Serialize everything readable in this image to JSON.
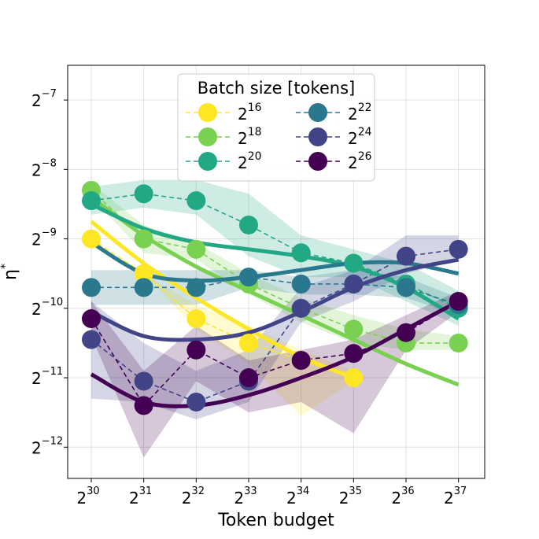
{
  "chart_data": {
    "type": "line",
    "xlabel": "Token budget",
    "ylabel": "η*",
    "x_ticks": [
      {
        "base": "2",
        "exp": "30",
        "value": 30
      },
      {
        "base": "2",
        "exp": "31",
        "value": 31
      },
      {
        "base": "2",
        "exp": "32",
        "value": 32
      },
      {
        "base": "2",
        "exp": "33",
        "value": 33
      },
      {
        "base": "2",
        "exp": "34",
        "value": 34
      },
      {
        "base": "2",
        "exp": "35",
        "value": 35
      },
      {
        "base": "2",
        "exp": "36",
        "value": 36
      },
      {
        "base": "2",
        "exp": "37",
        "value": 37
      }
    ],
    "y_ticks": [
      {
        "base": "2",
        "exp": "−7",
        "value": -7
      },
      {
        "base": "2",
        "exp": "−8",
        "value": -8
      },
      {
        "base": "2",
        "exp": "−9",
        "value": -9
      },
      {
        "base": "2",
        "exp": "−10",
        "value": -10
      },
      {
        "base": "2",
        "exp": "−11",
        "value": -11
      },
      {
        "base": "2",
        "exp": "−12",
        "value": -12
      }
    ],
    "xlim": [
      29.55,
      37.5
    ],
    "ylim": [
      -12.45,
      -6.5
    ],
    "grid": true,
    "legend": {
      "title": "Batch size [tokens]",
      "position": "top-center",
      "columns": 2
    },
    "series": [
      {
        "name": "2^16",
        "base": "2",
        "exp": "16",
        "color": "#fde725",
        "x": [
          30,
          31,
          32,
          33,
          34,
          35
        ],
        "y": [
          -9.0,
          -9.5,
          -10.15,
          -10.5,
          -10.75,
          -11.0
        ],
        "band_upper": [
          -9.0,
          -9.5,
          -9.95,
          -10.25,
          -10.6,
          -10.9
        ],
        "band_lower": [
          -9.0,
          -9.5,
          -10.3,
          -10.8,
          -11.55,
          -11.05
        ],
        "fit": [
          -8.75,
          -9.35,
          -9.85,
          -10.3,
          -10.7,
          -11.0
        ]
      },
      {
        "name": "2^18",
        "base": "2",
        "exp": "18",
        "color": "#7ad151",
        "x": [
          30,
          31,
          32,
          33,
          34,
          35,
          36,
          37
        ],
        "y": [
          -8.3,
          -9.0,
          -9.15,
          -9.65,
          -10.0,
          -10.3,
          -10.5,
          -10.5
        ],
        "band_upper": [
          -8.2,
          -8.8,
          -9.05,
          -9.5,
          -9.85,
          -10.1,
          -10.3,
          -10.4
        ],
        "band_lower": [
          -8.4,
          -9.2,
          -9.3,
          -9.8,
          -10.2,
          -10.5,
          -10.6,
          -10.6
        ],
        "fit": [
          -8.4,
          -8.95,
          -9.4,
          -9.75,
          -10.1,
          -10.45,
          -10.8,
          -11.1
        ]
      },
      {
        "name": "2^20",
        "base": "2",
        "exp": "20",
        "color": "#22a884",
        "x": [
          30,
          31,
          32,
          33,
          34,
          35,
          36,
          37
        ],
        "y": [
          -8.45,
          -8.35,
          -8.45,
          -8.8,
          -9.2,
          -9.35,
          -9.65,
          -10.0
        ],
        "band_upper": [
          -8.25,
          -8.15,
          -8.15,
          -8.35,
          -8.95,
          -9.15,
          -9.35,
          -9.75
        ],
        "band_lower": [
          -8.65,
          -8.55,
          -8.65,
          -9.25,
          -9.55,
          -9.55,
          -9.9,
          -10.25
        ],
        "fit": [
          -8.5,
          -8.85,
          -9.05,
          -9.15,
          -9.25,
          -9.4,
          -9.7,
          -10.15
        ]
      },
      {
        "name": "2^22",
        "base": "2",
        "exp": "22",
        "color": "#2a788e",
        "x": [
          30,
          31,
          32,
          33,
          34,
          35,
          36,
          37
        ],
        "y": [
          -9.7,
          -9.7,
          -9.7,
          -9.55,
          -9.65,
          -9.65,
          -9.7,
          -9.95
        ],
        "band_upper": [
          -9.45,
          -9.45,
          -9.45,
          -9.45,
          -9.55,
          -9.45,
          -9.55,
          -9.85
        ],
        "band_lower": [
          -9.95,
          -9.95,
          -9.95,
          -9.7,
          -9.8,
          -9.8,
          -9.85,
          -10.1
        ],
        "fit": [
          -9.05,
          -9.5,
          -9.6,
          -9.55,
          -9.45,
          -9.35,
          -9.35,
          -9.5
        ]
      },
      {
        "name": "2^24",
        "base": "2",
        "exp": "24",
        "color": "#414487",
        "x": [
          30,
          31,
          32,
          33,
          34,
          35,
          36,
          37
        ],
        "y": [
          -10.45,
          -11.05,
          -11.35,
          -11.05,
          -10.0,
          -9.65,
          -9.25,
          -9.15
        ],
        "band_upper": [
          -9.9,
          -10.5,
          -10.9,
          -10.6,
          -9.7,
          -9.45,
          -8.95,
          -8.95
        ],
        "band_lower": [
          -11.3,
          -11.35,
          -11.6,
          -11.35,
          -10.2,
          -9.9,
          -9.5,
          -9.3
        ],
        "fit": [
          -10.05,
          -10.4,
          -10.45,
          -10.35,
          -10.05,
          -9.7,
          -9.45,
          -9.3
        ]
      },
      {
        "name": "2^26",
        "base": "2",
        "exp": "26",
        "color": "#440154",
        "x": [
          30,
          31,
          32,
          33,
          34,
          35,
          36,
          37
        ],
        "y": [
          -10.15,
          -11.4,
          -10.6,
          -11.0,
          -10.75,
          -10.65,
          -10.35,
          -9.9
        ],
        "band_upper": [
          -9.9,
          -10.9,
          -10.25,
          -10.75,
          -10.6,
          -10.45,
          -10.1,
          -9.75
        ],
        "band_lower": [
          -10.4,
          -12.15,
          -11.05,
          -11.5,
          -11.35,
          -11.8,
          -10.6,
          -10.05
        ],
        "fit": [
          -10.95,
          -11.35,
          -11.4,
          -11.25,
          -11.0,
          -10.7,
          -10.3,
          -9.9
        ]
      }
    ]
  }
}
